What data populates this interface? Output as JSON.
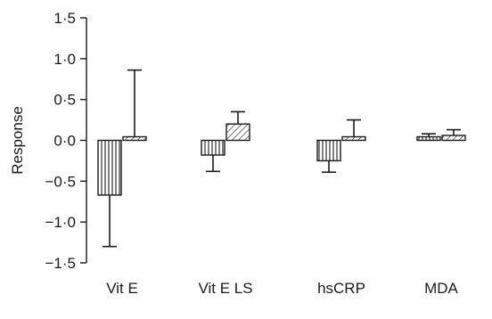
{
  "chart_data": {
    "type": "bar",
    "ylabel": "Response",
    "xlabel": "",
    "ylim": [
      -1.5,
      1.5
    ],
    "y_ticks": [
      1.5,
      1.0,
      0.5,
      0.0,
      -0.5,
      -1.0,
      -1.5
    ],
    "y_tick_labels": [
      "1·5",
      "1·0",
      "0·5",
      "0·0",
      "−0·5",
      "−1·0",
      "−1·5"
    ],
    "categories": [
      "Vit E",
      "Vit E LS",
      "hsCRP",
      "MDA"
    ],
    "series": [
      {
        "pattern": "vertical-lines",
        "values": [
          -0.67,
          -0.18,
          -0.25,
          0.03
        ],
        "error_upper": [
          null,
          null,
          null,
          0.08
        ],
        "error_lower": [
          -1.3,
          -0.38,
          -0.39,
          null
        ]
      },
      {
        "pattern": "diagonal-hatch",
        "values": [
          0.01,
          0.2,
          0.04,
          0.06
        ],
        "error_upper": [
          0.86,
          0.35,
          0.25,
          0.13
        ],
        "error_lower": [
          null,
          null,
          null,
          null
        ]
      }
    ],
    "grid": false,
    "colors": {
      "ink": "#1a1a1a",
      "background": "#ffffff"
    }
  }
}
